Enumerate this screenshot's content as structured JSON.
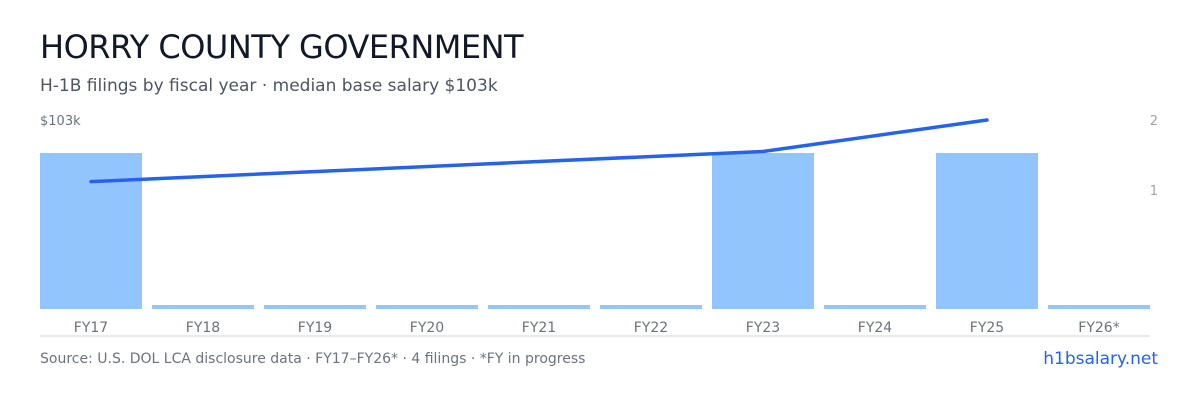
{
  "header": {
    "title": "HORRY COUNTY GOVERNMENT",
    "subtitle": "H-1B filings by fiscal year · median base salary $103k"
  },
  "footer": {
    "source": "Source: U.S. DOL LCA disclosure data · FY17–FY26* · 4 filings · *FY in progress",
    "brand": "h1bsalary.net"
  },
  "colors": {
    "bar": "#93c5fd",
    "line": "#2563eb",
    "axis_text": "#6b7280",
    "right_axis_text": "#9ca3af",
    "baseline": "#d1d5db"
  },
  "chart_data": {
    "type": "bar",
    "categories": [
      "FY17",
      "FY18",
      "FY19",
      "FY20",
      "FY21",
      "FY22",
      "FY23",
      "FY24",
      "FY25",
      "FY26*"
    ],
    "left_axis_label": "$103k",
    "right_ticks": [
      "1",
      "2"
    ],
    "series": [
      {
        "kind": "bar",
        "values": [
          1,
          0,
          0,
          0,
          0,
          0,
          1,
          0,
          1,
          0
        ],
        "axis": "left",
        "ylim": [
          0,
          1
        ]
      },
      {
        "kind": "line",
        "points": [
          {
            "x": "FY17",
            "y": 1.12
          },
          {
            "x": "FY23",
            "y": 1.55
          },
          {
            "x": "FY25",
            "y": 2.0
          }
        ],
        "axis": "right",
        "ylim": [
          0,
          2
        ]
      }
    ],
    "grid": false,
    "legend": "none"
  }
}
